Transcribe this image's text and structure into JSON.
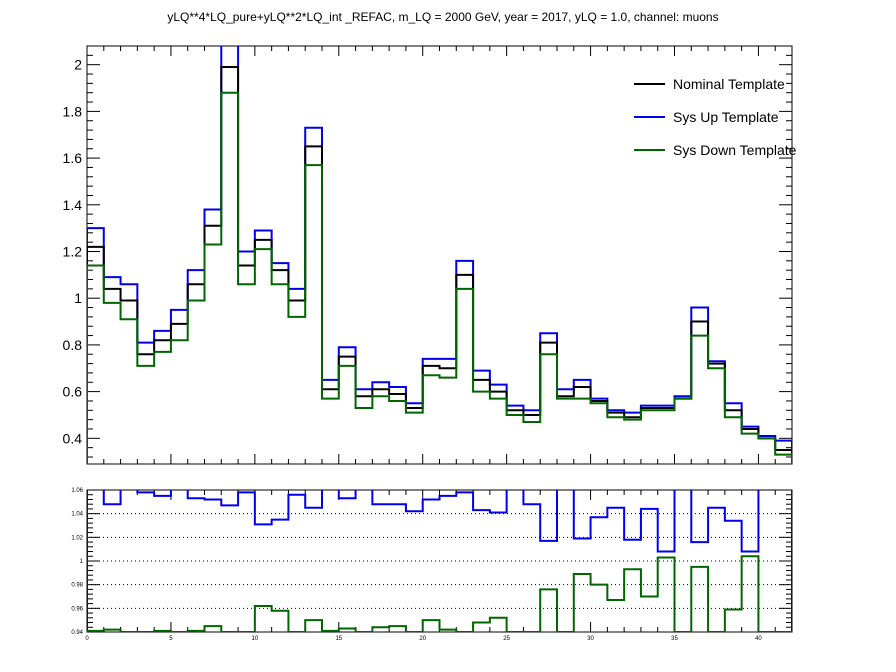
{
  "chart_data": [
    {
      "type": "line",
      "step": true,
      "title": "yLQ**4*LQ_pure+yLQ**2*LQ_int _REFAC, m_LQ = 2000 GeV, year = 2017, yLQ = 1.0, channel: muons",
      "xlim": [
        0,
        42
      ],
      "ylim": [
        0.29,
        2.08
      ],
      "yticks": [
        "0.4",
        "0.6",
        "0.8",
        "1",
        "1.2",
        "1.4",
        "1.6",
        "1.8",
        "2"
      ],
      "grid": false,
      "legend_position": "top-right",
      "series": [
        {
          "name": "Nominal Template",
          "color": "#000000",
          "values": [
            1.22,
            1.04,
            0.99,
            0.76,
            0.82,
            0.89,
            1.06,
            1.31,
            1.99,
            1.14,
            1.25,
            1.12,
            0.99,
            1.65,
            0.61,
            0.75,
            0.58,
            0.61,
            0.59,
            0.53,
            0.71,
            0.7,
            1.1,
            0.65,
            0.6,
            0.52,
            0.5,
            0.81,
            0.58,
            0.62,
            0.56,
            0.51,
            0.49,
            0.53,
            0.53,
            0.57,
            0.9,
            0.72,
            0.52,
            0.44,
            0.4,
            0.35
          ]
        },
        {
          "name": "Sys Up Template",
          "color": "#0000ee",
          "values": [
            1.3,
            1.09,
            1.06,
            0.81,
            0.86,
            0.95,
            1.12,
            1.38,
            2.14,
            1.2,
            1.29,
            1.15,
            1.04,
            1.73,
            0.65,
            0.79,
            0.61,
            0.64,
            0.62,
            0.55,
            0.74,
            0.74,
            1.16,
            0.69,
            0.63,
            0.54,
            0.52,
            0.85,
            0.61,
            0.65,
            0.57,
            0.52,
            0.51,
            0.54,
            0.54,
            0.58,
            0.96,
            0.73,
            0.55,
            0.45,
            0.41,
            0.39
          ]
        },
        {
          "name": "Sys Down Template",
          "color": "#006600",
          "values": [
            1.14,
            0.98,
            0.91,
            0.71,
            0.77,
            0.82,
            0.99,
            1.23,
            1.88,
            1.06,
            1.21,
            1.06,
            0.92,
            1.57,
            0.57,
            0.71,
            0.53,
            0.58,
            0.56,
            0.51,
            0.67,
            0.66,
            1.04,
            0.6,
            0.57,
            0.5,
            0.47,
            0.76,
            0.57,
            0.57,
            0.55,
            0.49,
            0.48,
            0.52,
            0.52,
            0.57,
            0.84,
            0.7,
            0.49,
            0.42,
            0.4,
            0.33
          ]
        }
      ]
    },
    {
      "type": "line",
      "step": true,
      "xlim": [
        0,
        42
      ],
      "ylim": [
        0.94,
        1.06
      ],
      "xticks": [
        "0",
        "5",
        "10",
        "15",
        "20",
        "25",
        "30",
        "35",
        "40"
      ],
      "yticks": [
        "0.94",
        "0.96",
        "0.98",
        "1",
        "1.02",
        "1.04",
        "1.06"
      ],
      "grid": "horizontal dotted",
      "series": [
        {
          "color": "#0000ee",
          "values": [
            1.062,
            1.048,
            1.062,
            1.058,
            1.055,
            1.062,
            1.053,
            1.052,
            1.047,
            1.058,
            1.031,
            1.035,
            1.056,
            1.045,
            1.065,
            1.053,
            1.062,
            1.048,
            1.048,
            1.042,
            1.052,
            1.055,
            1.058,
            1.043,
            1.041,
            1.062,
            1.048,
            1.017,
            1.062,
            1.019,
            1.037,
            1.045,
            1.018,
            1.044,
            1.008,
            1.062,
            1.016,
            1.045,
            1.034,
            1.008,
            1.062,
            1.062
          ]
        },
        {
          "color": "#006600",
          "values": [
            0.941,
            0.942,
            0.94,
            0.94,
            0.941,
            0.94,
            0.941,
            0.945,
            0.94,
            0.94,
            0.962,
            0.958,
            0.94,
            0.95,
            0.941,
            0.943,
            0.94,
            0.944,
            0.945,
            0.94,
            0.95,
            0.942,
            0.94,
            0.948,
            0.952,
            0.94,
            0.94,
            0.976,
            0.94,
            0.989,
            0.98,
            0.967,
            0.993,
            0.97,
            1.003,
            0.94,
            0.995,
            0.94,
            0.959,
            1.004,
            0.94,
            0.94
          ]
        }
      ]
    }
  ]
}
